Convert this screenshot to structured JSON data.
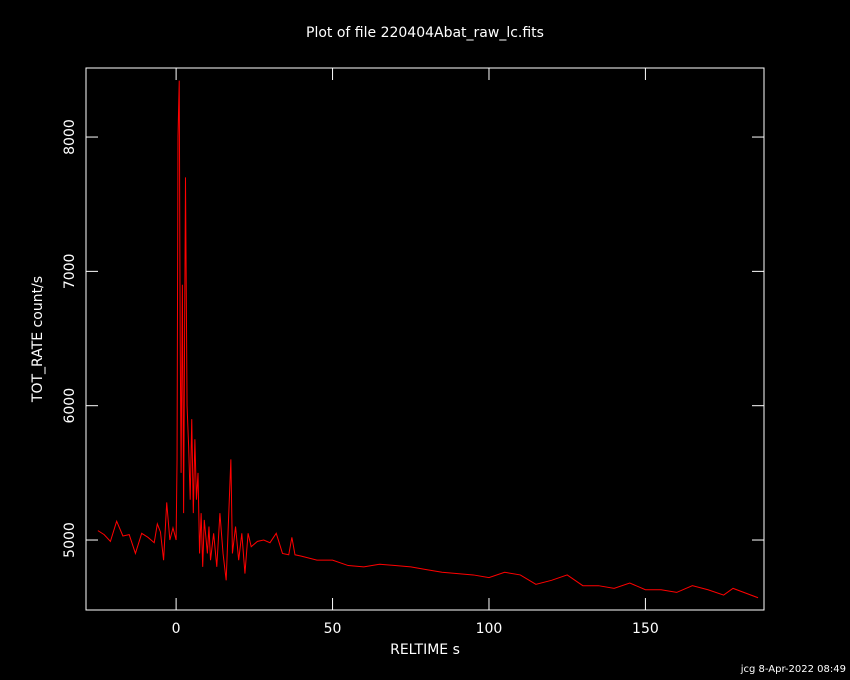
{
  "chart_data": {
    "type": "line",
    "title": "Plot of file 220404Abat_raw_lc.fits",
    "xlabel": "RELTIME  s",
    "ylabel": "TOT_RATE  count/s",
    "color": "#ff0000",
    "x": [
      -25,
      -23,
      -21,
      -19,
      -17,
      -15,
      -13,
      -11,
      -9,
      -7,
      -6,
      -5,
      -4,
      -3,
      -2,
      -1,
      0,
      0.3,
      0.6,
      1,
      1.3,
      1.6,
      2,
      2.4,
      3,
      3.5,
      4,
      4.5,
      5,
      5.5,
      6,
      6.5,
      7,
      7.5,
      8,
      8.5,
      9,
      10,
      10.5,
      11,
      12,
      13,
      14,
      15,
      16,
      17,
      17.5,
      18,
      19,
      20,
      21,
      22,
      23,
      24,
      26,
      28,
      30,
      32,
      34,
      36,
      37,
      38,
      40,
      45,
      50,
      55,
      60,
      65,
      70,
      75,
      80,
      85,
      90,
      95,
      100,
      105,
      110,
      115,
      120,
      125,
      130,
      135,
      140,
      145,
      150,
      155,
      160,
      165,
      170,
      175,
      178,
      186
    ],
    "values": [
      5070,
      5040,
      4990,
      5140,
      5030,
      5040,
      4900,
      5050,
      5020,
      4980,
      5120,
      5060,
      4850,
      5280,
      5000,
      5090,
      5000,
      5600,
      8000,
      8420,
      6500,
      5500,
      6900,
      5200,
      7700,
      6000,
      5700,
      5300,
      5900,
      5200,
      5750,
      5300,
      5500,
      4900,
      5200,
      4800,
      5150,
      4900,
      5100,
      4850,
      5050,
      4800,
      5200,
      4900,
      4700,
      5300,
      5600,
      4900,
      5100,
      4850,
      5050,
      4750,
      5050,
      4950,
      4990,
      5000,
      4980,
      5050,
      4900,
      4890,
      5020,
      4890,
      4880,
      4850,
      4850,
      4810,
      4800,
      4820,
      4810,
      4800,
      4780,
      4760,
      4750,
      4740,
      4720,
      4760,
      4740,
      4670,
      4700,
      4740,
      4660,
      4660,
      4640,
      4680,
      4630,
      4630,
      4610,
      4660,
      4630,
      4590,
      4640,
      4570
    ],
    "xlim": [
      -28.8,
      187.9
    ],
    "ylim": [
      4479,
      8514
    ],
    "xticks": [
      0,
      50,
      100,
      150
    ],
    "yticks": [
      5000,
      6000,
      7000,
      8000
    ]
  },
  "footer": "jcg  8-Apr-2022 08:49"
}
